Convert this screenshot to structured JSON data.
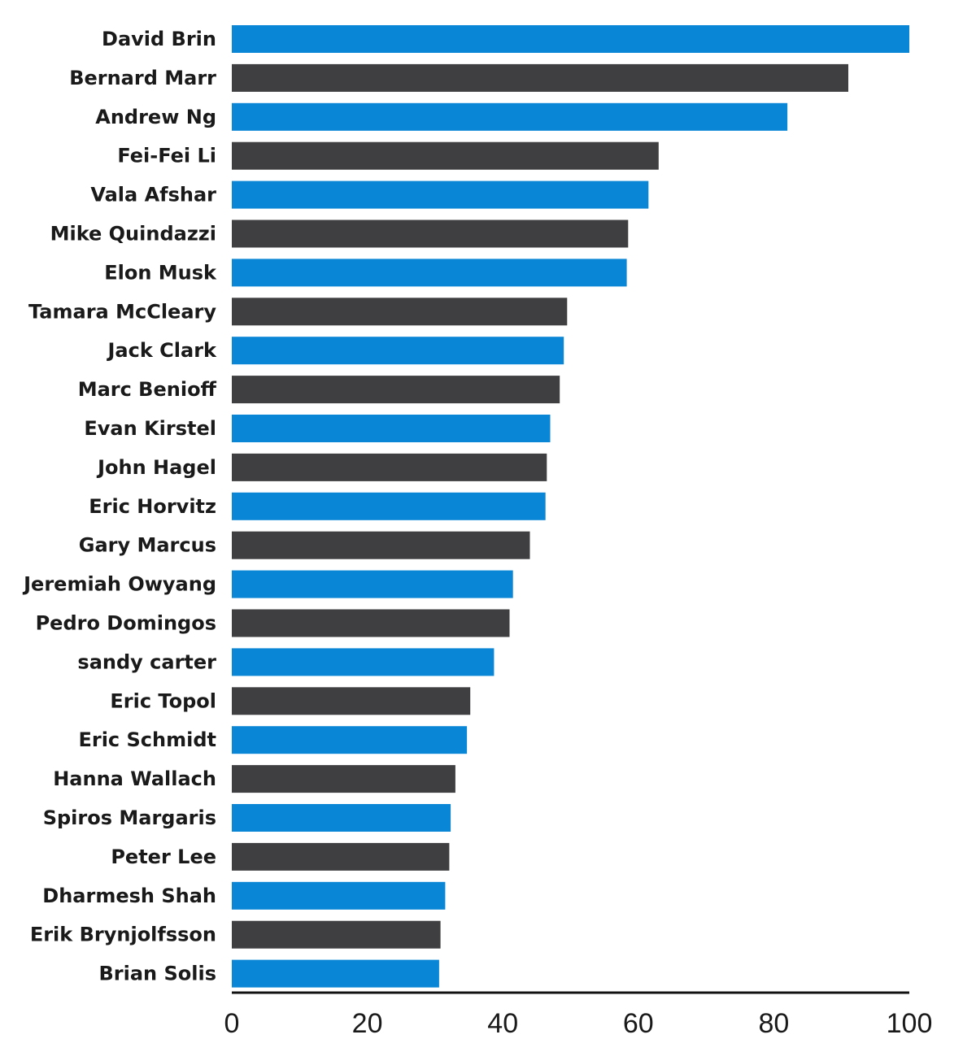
{
  "chart_data": {
    "type": "bar",
    "orientation": "horizontal",
    "title": "",
    "xlabel": "",
    "ylabel": "",
    "xlim": [
      0,
      100
    ],
    "x_ticks": [
      "0",
      "20",
      "40",
      "60",
      "80",
      "100"
    ],
    "grid": false,
    "legend": "none",
    "colors": {
      "odd": "#0a86d6",
      "even": "#3f3f41",
      "axis": "#111111"
    },
    "categories": [
      "David Brin",
      "Bernard Marr",
      "Andrew Ng",
      "Fei-Fei Li",
      "Vala Afshar",
      "Mike Quindazzi",
      "Elon Musk",
      "Tamara McCleary",
      "Jack Clark",
      "Marc Benioff",
      "Evan Kirstel",
      "John Hagel",
      "Eric Horvitz",
      "Gary Marcus",
      "Jeremiah Owyang",
      "Pedro Domingos",
      "sandy carter",
      "Eric Topol",
      "Eric Schmidt",
      "Hanna Wallach",
      "Spiros Margaris",
      "Peter Lee",
      "Dharmesh Shah",
      "Erik Brynjolfsson",
      "Brian Solis"
    ],
    "values": [
      100,
      91,
      82,
      63,
      61.5,
      58.5,
      58.3,
      49.5,
      49,
      48.4,
      47,
      46.5,
      46.3,
      44,
      41.5,
      41,
      38.7,
      35.2,
      34.7,
      33,
      32.3,
      32.1,
      31.5,
      30.8,
      30.6
    ]
  }
}
